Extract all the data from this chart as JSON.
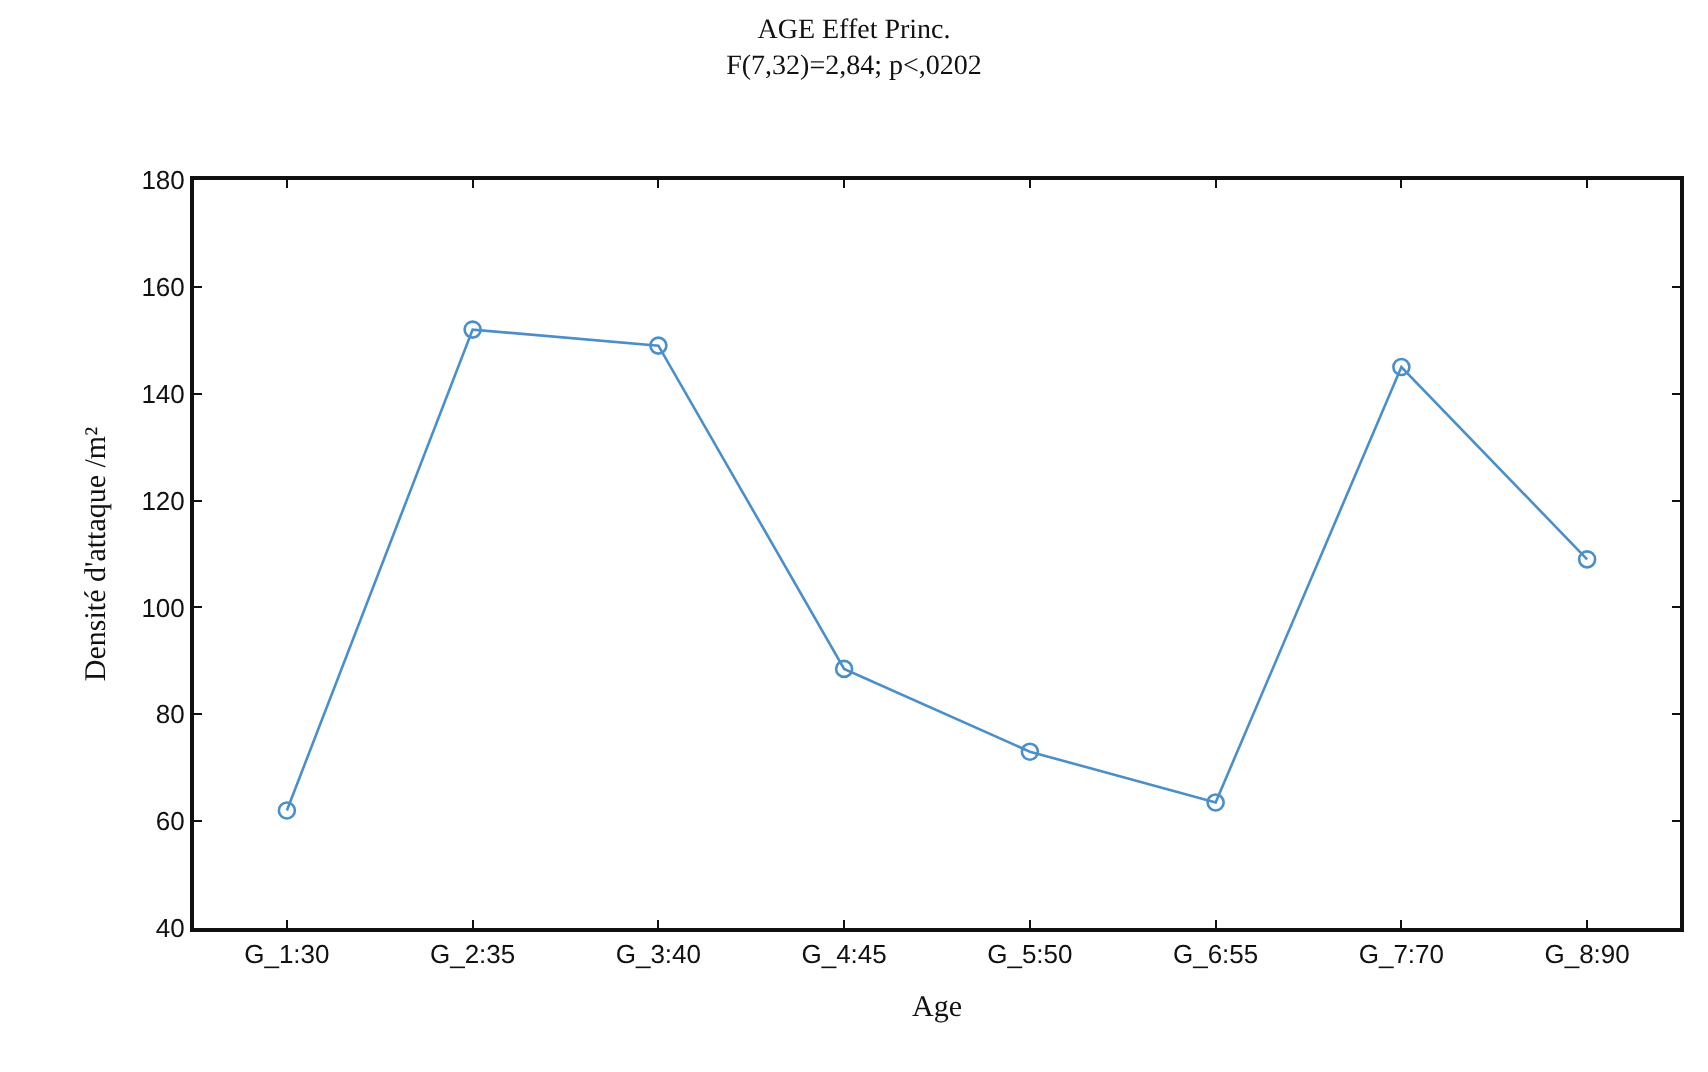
{
  "chart_data": {
    "type": "line",
    "title": "AGE Effet Princ.",
    "subtitle": "F(7,32)=2,84; p<,0202",
    "xlabel": "Age",
    "ylabel": "Densité d'attaque /m²",
    "categories": [
      "G_1:30",
      "G_2:35",
      "G_3:40",
      "G_4:45",
      "G_5:50",
      "G_6:55",
      "G_7:70",
      "G_8:90"
    ],
    "series": [
      {
        "color": "#4a8fc9",
        "values": [
          62,
          152,
          149,
          88.5,
          73,
          63.5,
          145,
          109
        ]
      }
    ],
    "ylim": [
      40,
      180
    ],
    "yticks": [
      40,
      60,
      80,
      100,
      120,
      140,
      160,
      180
    ],
    "grid": false,
    "marker": "circle",
    "line_style": "solid"
  }
}
